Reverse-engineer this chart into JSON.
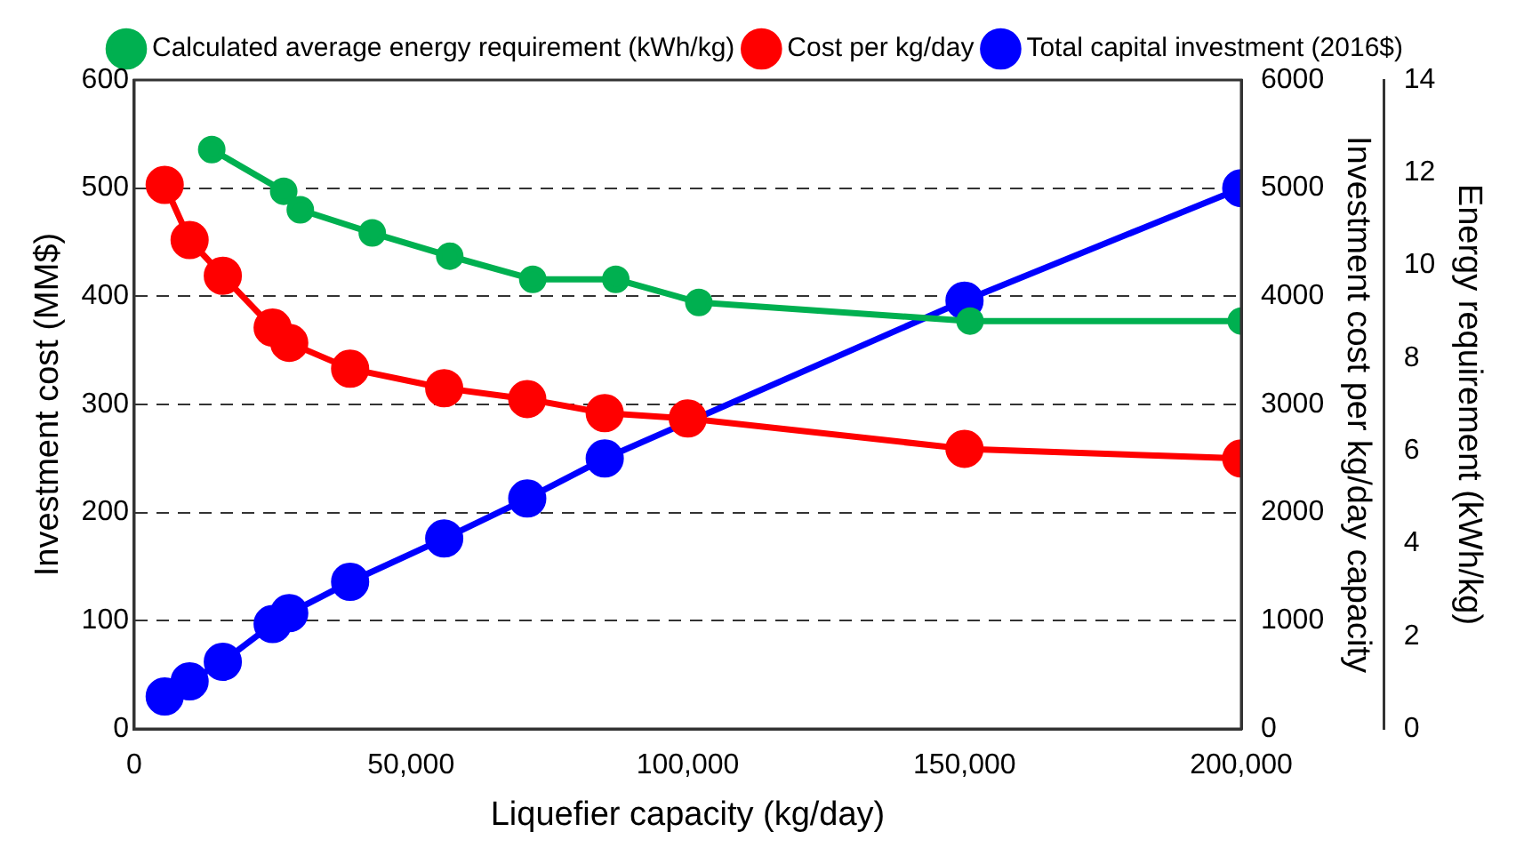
{
  "chart_data": {
    "type": "line",
    "xlabel": "Liquefier capacity (kg/day)",
    "ylabel": "Investment cost (MM$)",
    "y2label": "Investment cost per kg/day capacity",
    "y3label": "Energy requirement (kWh/kg)",
    "xlim": [
      0,
      200000
    ],
    "xticks": [
      0,
      {
        "value": 50000,
        "label": "50,000"
      },
      {
        "value": 100000,
        "label": "100,000"
      },
      {
        "value": 150000,
        "label": "150,000"
      },
      {
        "value": 200000,
        "label": "200,000"
      }
    ],
    "ylim": [
      0,
      600
    ],
    "yticks": [
      0,
      100,
      200,
      300,
      400,
      500,
      600
    ],
    "y2lim": [
      0,
      6000
    ],
    "y2ticks": [
      0,
      1000,
      2000,
      3000,
      4000,
      5000,
      6000
    ],
    "y3lim": [
      0,
      14
    ],
    "y3ticks": [
      0,
      2,
      4,
      6,
      8,
      10,
      12,
      14
    ],
    "grid": "y",
    "legend": "top",
    "marker": "circle",
    "line_style": "solid",
    "series": [
      {
        "name": "Calculated average energy requirement (kWh/kg)",
        "color": "#00b050",
        "axis": "y3",
        "x": [
          14000,
          27000,
          30000,
          43000,
          57000,
          72000,
          87000,
          102000,
          151000,
          200000
        ],
        "values": [
          12.5,
          11.6,
          11.2,
          10.7,
          10.2,
          9.7,
          9.7,
          9.2,
          8.8,
          8.8
        ]
      },
      {
        "name": "Cost per kg/day",
        "color": "#ff0000",
        "axis": "y2",
        "x": [
          5500,
          10000,
          16000,
          25000,
          28000,
          39000,
          56000,
          71000,
          85000,
          100000,
          150000,
          200000
        ],
        "values": [
          5030,
          4520,
          4190,
          3710,
          3570,
          3330,
          3150,
          3050,
          2920,
          2870,
          2590,
          2500
        ]
      },
      {
        "name": "Total capital investment (2016$)",
        "color": "#0000ff",
        "x": [
          5500,
          10000,
          16000,
          25000,
          28000,
          39000,
          56000,
          71000,
          85000,
          100000,
          150000,
          200000
        ],
        "values": [
          30,
          44,
          62,
          97,
          107,
          136,
          176,
          213,
          250,
          null,
          396,
          500
        ]
      }
    ]
  }
}
